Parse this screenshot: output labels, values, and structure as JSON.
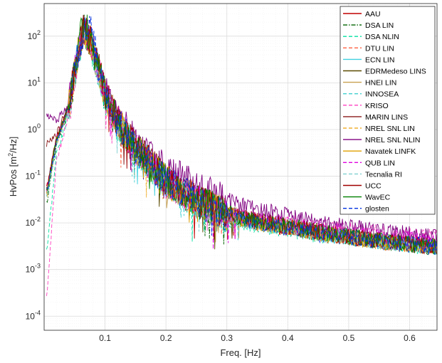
{
  "chart_data": {
    "type": "line",
    "xlabel": "Freq. [Hz]",
    "ylabel_base": "HvPos [m",
    "ylabel_sup": "2",
    "ylabel_tail": "/Hz]",
    "xlim": [
      0.0,
      0.645
    ],
    "ylim": [
      5e-05,
      500
    ],
    "yscale": "log",
    "grid": true,
    "minor_grid": true,
    "legend_placement": "top-right",
    "x_ticks": [
      0.1,
      0.2,
      0.3,
      0.4,
      0.5,
      0.6
    ],
    "x_tick_labels": [
      "0.1",
      "0.2",
      "0.3",
      "0.4",
      "0.5",
      "0.6"
    ],
    "y_ticks": [
      0.0001,
      0.001,
      0.01,
      0.1,
      1,
      10,
      100
    ],
    "y_tick_base": "10",
    "y_tick_exps": [
      "-4",
      "-3",
      "-2",
      "-1",
      "0",
      "1",
      "2"
    ],
    "anchor_x": [
      0.005,
      0.02,
      0.04,
      0.055,
      0.065,
      0.075,
      0.09,
      0.1,
      0.12,
      0.15,
      0.2,
      0.25,
      0.3,
      0.35,
      0.4,
      0.45,
      0.5,
      0.55,
      0.6,
      0.645
    ],
    "series": [
      {
        "name": "AAU",
        "color": "#c00000",
        "dash": "solid",
        "values": [
          0.06,
          0.6,
          3,
          40,
          150,
          90,
          20,
          6,
          1.5,
          0.4,
          0.08,
          0.03,
          0.015,
          0.01,
          0.008,
          0.006,
          0.005,
          0.004,
          0.0035,
          0.003
        ]
      },
      {
        "name": "DSA LIN",
        "color": "#006400",
        "dash": "dashdot",
        "values": [
          0.03,
          0.5,
          2.5,
          35,
          140,
          80,
          18,
          5,
          1.4,
          0.4,
          0.08,
          0.03,
          0.014,
          0.01,
          0.008,
          0.006,
          0.005,
          0.004,
          0.0035,
          0.003
        ]
      },
      {
        "name": "DSA NLIN",
        "color": "#00e0a0",
        "dash": "dashed",
        "values": [
          0.003,
          0.3,
          2,
          30,
          120,
          70,
          16,
          4,
          1.2,
          0.35,
          0.07,
          0.025,
          0.012,
          0.009,
          0.007,
          0.0055,
          0.0045,
          0.004,
          0.0034,
          0.003
        ]
      },
      {
        "name": "DTU LIN",
        "color": "#ff6040",
        "dash": "dashed",
        "values": [
          0.05,
          0.6,
          3,
          40,
          150,
          85,
          19,
          5.5,
          1.5,
          0.4,
          0.08,
          0.03,
          0.015,
          0.01,
          0.008,
          0.006,
          0.005,
          0.004,
          0.0035,
          0.003
        ]
      },
      {
        "name": "ECN LIN",
        "color": "#40d0e0",
        "dash": "solid",
        "values": [
          0.04,
          0.5,
          2.8,
          38,
          145,
          82,
          18,
          5,
          1.4,
          0.38,
          0.078,
          0.029,
          0.014,
          0.01,
          0.008,
          0.006,
          0.005,
          0.004,
          0.0035,
          0.003
        ]
      },
      {
        "name": "EDRMedeso LINS",
        "color": "#5a4a00",
        "dash": "solid",
        "values": [
          0.05,
          0.6,
          3,
          40,
          150,
          88,
          20,
          6,
          1.5,
          0.42,
          0.085,
          0.032,
          0.016,
          0.011,
          0.0085,
          0.0065,
          0.0052,
          0.0042,
          0.0036,
          0.0031
        ]
      },
      {
        "name": "HNEI LIN",
        "color": "#c8a050",
        "dash": "solid",
        "values": [
          0.05,
          0.55,
          2.8,
          38,
          145,
          84,
          19,
          5.5,
          1.45,
          0.4,
          0.08,
          0.03,
          0.015,
          0.01,
          0.008,
          0.006,
          0.005,
          0.004,
          0.0035,
          0.003
        ]
      },
      {
        "name": "INNOSEA",
        "color": "#40d0d0",
        "dash": "dashed",
        "values": [
          0.04,
          0.5,
          2.6,
          36,
          140,
          80,
          18,
          5,
          1.4,
          0.38,
          0.076,
          0.029,
          0.014,
          0.01,
          0.008,
          0.006,
          0.005,
          0.004,
          0.0035,
          0.003
        ]
      },
      {
        "name": "KRISO",
        "color": "#ff40c0",
        "dash": "dashed",
        "values": [
          0.0003,
          0.2,
          2,
          32,
          130,
          75,
          17,
          4.8,
          1.3,
          0.36,
          0.075,
          0.03,
          0.016,
          0.012,
          0.01,
          0.008,
          0.007,
          0.006,
          0.0055,
          0.005
        ]
      },
      {
        "name": "MARIN LINS",
        "color": "#8b1a1a",
        "dash": "solid",
        "values": [
          0.5,
          0.8,
          3.2,
          42,
          155,
          90,
          20,
          6,
          1.6,
          0.42,
          0.085,
          0.032,
          0.016,
          0.011,
          0.0085,
          0.0065,
          0.0052,
          0.0042,
          0.0036,
          0.0031
        ]
      },
      {
        "name": "NREL SNL LIN",
        "color": "#f0b030",
        "dash": "dashed",
        "values": [
          0.04,
          0.5,
          2.8,
          38,
          145,
          84,
          19,
          5.5,
          1.45,
          0.4,
          0.08,
          0.03,
          0.015,
          0.01,
          0.008,
          0.006,
          0.005,
          0.004,
          0.0035,
          0.003
        ]
      },
      {
        "name": "NREL SNL NLIN",
        "color": "#800080",
        "dash": "solid",
        "values": [
          2,
          1.5,
          3.5,
          45,
          160,
          95,
          22,
          7,
          2,
          0.6,
          0.15,
          0.06,
          0.03,
          0.02,
          0.014,
          0.01,
          0.008,
          0.0065,
          0.0058,
          0.005
        ]
      },
      {
        "name": "Navatek LINFK",
        "color": "#e0a000",
        "dash": "solid",
        "values": [
          0.05,
          0.6,
          3,
          40,
          150,
          85,
          19,
          5.5,
          1.5,
          0.4,
          0.08,
          0.03,
          0.015,
          0.01,
          0.008,
          0.006,
          0.005,
          0.004,
          0.0035,
          0.003
        ]
      },
      {
        "name": "QUB LIN",
        "color": "#e000e0",
        "dash": "dashed",
        "values": [
          0.05,
          0.6,
          3,
          40,
          150,
          85,
          19,
          5.5,
          1.5,
          0.4,
          0.08,
          0.03,
          0.016,
          0.011,
          0.009,
          0.007,
          0.006,
          0.005,
          0.0045,
          0.004
        ]
      },
      {
        "name": "Tecnalia RI",
        "color": "#80d0d0",
        "dash": "dashed",
        "values": [
          0.04,
          0.5,
          2.6,
          36,
          140,
          80,
          18,
          5,
          1.4,
          0.38,
          0.076,
          0.029,
          0.014,
          0.01,
          0.008,
          0.006,
          0.005,
          0.004,
          0.0035,
          0.003
        ]
      },
      {
        "name": "UCC",
        "color": "#a00000",
        "dash": "solid",
        "values": [
          0.06,
          0.6,
          3,
          40,
          150,
          88,
          20,
          6,
          1.5,
          0.42,
          0.085,
          0.032,
          0.016,
          0.011,
          0.0085,
          0.0065,
          0.0052,
          0.0042,
          0.0036,
          0.0031
        ]
      },
      {
        "name": "WavEC",
        "color": "#008000",
        "dash": "solid",
        "values": [
          0.05,
          0.6,
          3,
          40,
          250,
          88,
          20,
          6,
          1.5,
          0.42,
          0.085,
          0.032,
          0.016,
          0.011,
          0.0085,
          0.0065,
          0.0052,
          0.0042,
          0.0036,
          0.0031
        ]
      },
      {
        "name": "glosten",
        "color": "#0030e0",
        "dash": "dashed",
        "values": [
          0.05,
          0.5,
          2.8,
          38,
          145,
          200,
          19,
          5.5,
          1.45,
          0.4,
          0.08,
          0.03,
          0.014,
          0.01,
          0.0075,
          0.0058,
          0.0048,
          0.004,
          0.0034,
          0.003
        ]
      }
    ]
  }
}
